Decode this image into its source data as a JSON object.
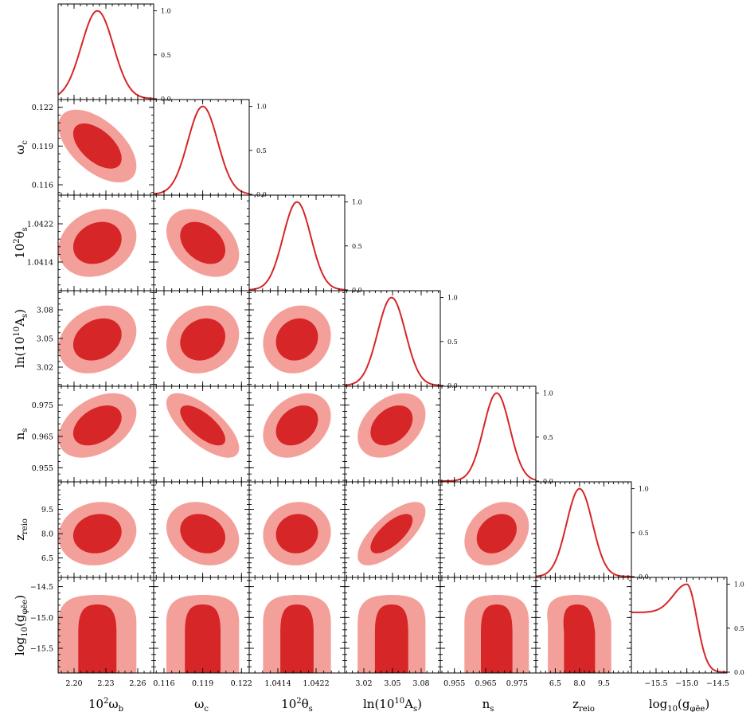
{
  "chart_data": {
    "type": "corner",
    "colors": {
      "outer": "#f4a09a",
      "inner": "#d62628",
      "line": "#d62628"
    },
    "parameters": [
      {
        "name": "10^2 omega_b",
        "label_main": "10",
        "label_sup": "2",
        "label_tail": "ω",
        "label_sub": "b",
        "lim": [
          2.185,
          2.275
        ],
        "ticks": [
          2.2,
          2.23,
          2.26
        ],
        "tick_labels": [
          "2.20",
          "2.23",
          "2.26"
        ],
        "mean": 2.222,
        "sigma": 0.015
      },
      {
        "name": "omega_c",
        "label_main": "",
        "label_sup": "",
        "label_tail": "ω",
        "label_sub": "c",
        "lim": [
          0.1152,
          0.1226
        ],
        "ticks": [
          0.116,
          0.119,
          0.122
        ],
        "tick_labels": [
          "0.116",
          "0.119",
          "0.122"
        ],
        "mean": 0.119,
        "sigma": 0.00115
      },
      {
        "name": "10^2 theta_s",
        "label_main": "10",
        "label_sup": "2",
        "label_tail": "θ",
        "label_sub": "s",
        "lim": [
          1.0408,
          1.0428
        ],
        "ticks": [
          1.0414,
          1.0422
        ],
        "tick_labels": [
          "1.0414",
          "1.0422"
        ],
        "mean": 1.0418,
        "sigma": 0.00029
      },
      {
        "name": "ln(10^10 A_s)",
        "label_main": "ln(10",
        "label_sup": "10",
        "label_tail": "A",
        "label_sub": "s",
        "label_close": ")",
        "lim": [
          3.0,
          3.1
        ],
        "ticks": [
          3.02,
          3.05,
          3.08
        ],
        "tick_labels": [
          "3.02",
          "3.05",
          "3.08"
        ],
        "mean": 3.049,
        "sigma": 0.0145
      },
      {
        "name": "n_s",
        "label_main": "",
        "label_sup": "",
        "label_tail": "n",
        "label_sub": "s",
        "lim": [
          0.9505,
          0.981
        ],
        "ticks": [
          0.955,
          0.965,
          0.975
        ],
        "tick_labels": [
          "0.955",
          "0.965",
          "0.975"
        ],
        "mean": 0.9685,
        "sigma": 0.0042
      },
      {
        "name": "z_reio",
        "label_main": "",
        "label_sup": "",
        "label_tail": "z",
        "label_sub": "reio",
        "lim": [
          5.3,
          11.2
        ],
        "ticks": [
          6.5,
          8.0,
          9.5
        ],
        "tick_labels": [
          "6.5",
          "8.0",
          "9.5"
        ],
        "mean": 8.0,
        "sigma": 0.8
      },
      {
        "name": "log10(g_phi_ee)",
        "label_main": "log",
        "label_sup": "",
        "label_tail": "(g",
        "label_sub": "φēe",
        "label_close": ")",
        "label_log_sub": "10",
        "lim": [
          -15.9,
          -14.35
        ],
        "ticks": [
          -15.5,
          -15.0,
          -14.5
        ],
        "tick_labels": [
          "−15.5",
          "−15.0",
          "−14.5"
        ],
        "mean": -15.0,
        "sigma": 0.18
      }
    ],
    "diag_yticks": [
      0.0,
      0.5,
      1.0
    ],
    "diag_ytick_labels": [
      "0.0",
      "0.5",
      "1.0"
    ],
    "correlations": [
      [
        1,
        -0.55,
        0.2,
        0.25,
        0.4,
        0.1,
        0
      ],
      [
        -0.55,
        1,
        -0.35,
        0.15,
        -0.7,
        -0.2,
        0
      ],
      [
        0.2,
        -0.35,
        1,
        0.12,
        0.3,
        0.05,
        0
      ],
      [
        0.25,
        0.15,
        0.12,
        1,
        0.35,
        0.7,
        0
      ],
      [
        0.4,
        -0.7,
        0.3,
        0.35,
        1,
        0.25,
        0
      ],
      [
        0.1,
        -0.2,
        0.05,
        0.7,
        0.25,
        1,
        -0.3
      ],
      [
        0,
        0,
        0,
        0,
        0,
        -0.3,
        1
      ]
    ]
  }
}
